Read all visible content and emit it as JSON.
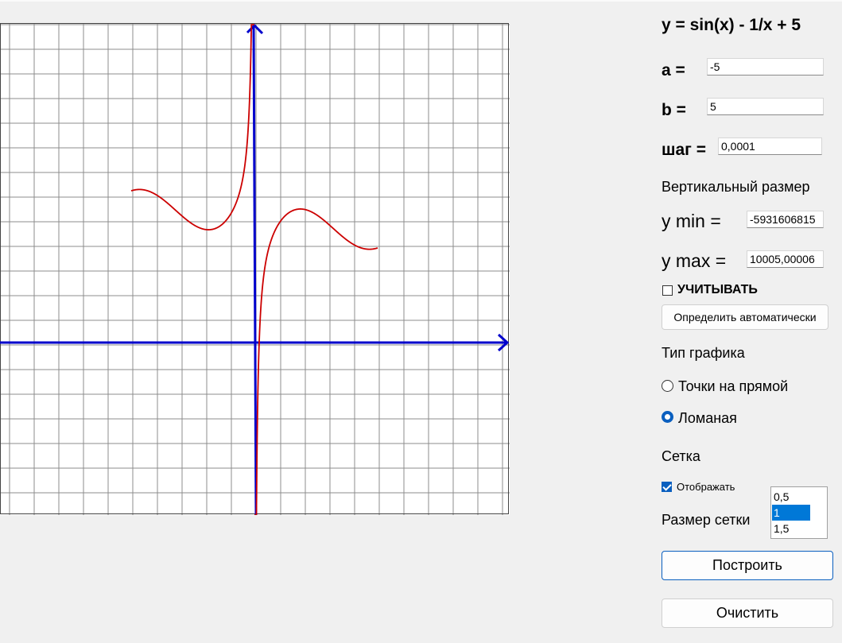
{
  "formula": "y = sin(x) - 1/x + 5",
  "params": {
    "a_label": "a =",
    "a_value": "-5",
    "b_label": "b =",
    "b_value": "5",
    "step_label": "шаг =",
    "step_value": "0,0001"
  },
  "vertical": {
    "title": "Вертикальный размер",
    "ymin_label": "y min =",
    "ymin_value": "-5931606815",
    "ymax_label": "y max =",
    "ymax_value": "10005,00006",
    "consider_label": "УЧИТЫВАТЬ",
    "consider_checked": false,
    "auto_button": "Определить автоматически"
  },
  "graph_type": {
    "title": "Тип графика",
    "options": [
      {
        "label": "Точки на прямой",
        "selected": false
      },
      {
        "label": "Ломаная",
        "selected": true
      }
    ]
  },
  "grid": {
    "title": "Сетка",
    "show_label": "Отображать",
    "show_checked": true,
    "size_label": "Размер сетки",
    "size_options": [
      "0,5",
      "1",
      "1,5"
    ],
    "size_selected": "1"
  },
  "buttons": {
    "build": "Построить",
    "clear": "Очистить"
  },
  "chart_data": {
    "type": "line",
    "function": "sin(x) - 1/x + 5",
    "x_range": [
      -5,
      5
    ],
    "grid_step": 1,
    "axis_color": "#0000cc",
    "curve_color": "#cc0000",
    "grid_color": "#8c8c8c"
  },
  "colors": {
    "background": "#f0f0f0",
    "accent": "#0a5fbf",
    "selection": "#0078d7"
  }
}
